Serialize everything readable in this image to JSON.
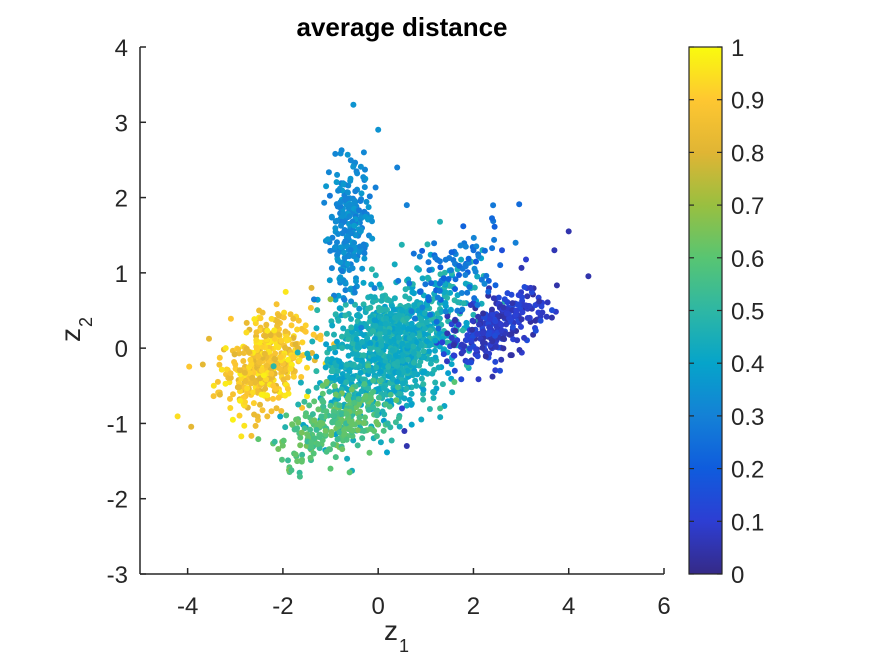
{
  "chart_data": {
    "type": "scatter",
    "title": "average distance",
    "xlabel": "z",
    "xlabel_sub": "1",
    "ylabel": "z",
    "ylabel_sub": "2",
    "xlim": [
      -5,
      6
    ],
    "ylim": [
      -3,
      4
    ],
    "xticks": [
      "-4",
      "-2",
      "0",
      "2",
      "4",
      "6"
    ],
    "yticks": [
      "4",
      "3",
      "2",
      "1",
      "0",
      "-1",
      "-2",
      "-3"
    ],
    "colorbar": {
      "range": [
        0,
        1
      ],
      "ticks": [
        "1",
        "0.9",
        "0.8",
        "0.7",
        "0.6",
        "0.5",
        "0.4",
        "0.3",
        "0.2",
        "0.1",
        "0"
      ],
      "colormap": "parula"
    },
    "grid": false,
    "clusters": [
      {
        "label": "left-yellow",
        "center": [
          -2.4,
          -0.2
        ],
        "spread": [
          0.45,
          0.3
        ],
        "count": 420,
        "color_value": [
          0.8,
          0.98
        ]
      },
      {
        "label": "central-teal",
        "center": [
          0.3,
          0.0
        ],
        "spread": [
          0.75,
          0.42
        ],
        "count": 1100,
        "color_value": [
          0.38,
          0.5
        ]
      },
      {
        "label": "right-dark-blue",
        "center": [
          2.5,
          0.3
        ],
        "spread": [
          0.5,
          0.22
        ],
        "count": 280,
        "color_value": [
          0.03,
          0.15
        ]
      },
      {
        "label": "upper-stem-blue",
        "center": [
          -0.6,
          1.6
        ],
        "spread": [
          0.22,
          0.45
        ],
        "count": 230,
        "color_value": [
          0.28,
          0.38
        ]
      },
      {
        "label": "lower-green",
        "center": [
          -0.9,
          -1.0
        ],
        "spread": [
          0.55,
          0.22
        ],
        "count": 260,
        "color_value": [
          0.52,
          0.65
        ]
      },
      {
        "label": "upper-right-blue",
        "center": [
          1.6,
          1.0
        ],
        "spread": [
          0.6,
          0.3
        ],
        "count": 90,
        "color_value": [
          0.2,
          0.32
        ]
      }
    ],
    "sampled_points": [
      [
        -3.45,
        -0.5,
        0.95
      ],
      [
        -3.05,
        -0.95,
        0.98
      ],
      [
        -2.9,
        -0.7,
        0.97
      ],
      [
        -3.2,
        0.0,
        0.96
      ],
      [
        -2.5,
        0.5,
        0.85
      ],
      [
        -1.4,
        0.8,
        0.8
      ],
      [
        -1.0,
        0.65,
        0.7
      ],
      [
        0.0,
        2.9,
        0.35
      ],
      [
        -0.3,
        2.6,
        0.32
      ],
      [
        0.4,
        2.4,
        0.3
      ],
      [
        -0.6,
        1.9,
        0.33
      ],
      [
        0.6,
        1.9,
        0.3
      ],
      [
        1.2,
        1.2,
        0.28
      ],
      [
        2.0,
        1.3,
        0.25
      ],
      [
        2.6,
        1.3,
        0.15
      ],
      [
        4.0,
        1.55,
        0.05
      ],
      [
        3.7,
        1.3,
        0.06
      ],
      [
        3.2,
        0.8,
        0.08
      ],
      [
        2.9,
        0.5,
        0.1
      ],
      [
        2.2,
        0.2,
        0.08
      ],
      [
        1.6,
        -0.1,
        0.1
      ],
      [
        0.55,
        -1.1,
        0.06
      ],
      [
        0.6,
        -1.3,
        0.05
      ],
      [
        0.5,
        -0.8,
        0.1
      ],
      [
        -1.7,
        -1.5,
        0.62
      ],
      [
        -1.0,
        -1.6,
        0.6
      ],
      [
        -0.6,
        -1.65,
        0.6
      ],
      [
        -1.4,
        -1.25,
        0.58
      ],
      [
        -0.3,
        -1.1,
        0.55
      ],
      [
        0.2,
        -1.0,
        0.5
      ],
      [
        1.3,
        -0.8,
        0.55
      ],
      [
        1.6,
        -0.45,
        0.6
      ],
      [
        -0.8,
        0.9,
        0.35
      ],
      [
        0.5,
        0.5,
        0.42
      ],
      [
        1.2,
        0.1,
        0.4
      ],
      [
        -0.2,
        -0.3,
        0.45
      ]
    ]
  }
}
